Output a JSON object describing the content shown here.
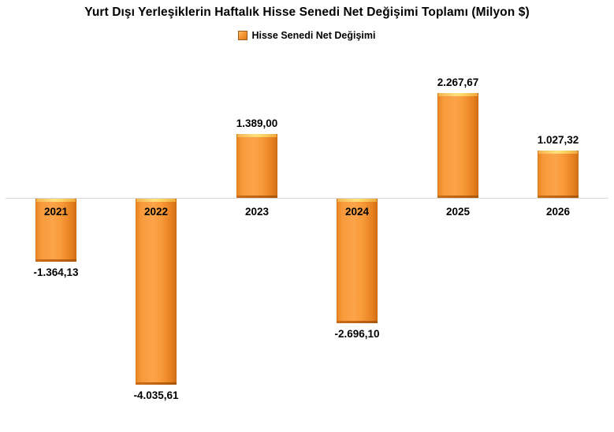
{
  "title": "Yurt Dışı Yerleşiklerin Haftalık Hisse Senedi Net Değişimi Toplamı (Milyon $)",
  "legend": {
    "label": "Hisse Senedi Net Değişimi"
  },
  "chart_data": {
    "type": "bar",
    "title": "Yurt Dışı Yerleşiklerin Haftalık Hisse Senedi Net Değişimi Toplamı (Milyon $)",
    "categories": [
      "2021",
      "2022",
      "2023",
      "2024",
      "2025",
      "2026"
    ],
    "series": [
      {
        "name": "Hisse Senedi Net Değişimi",
        "values": [
          -1364.13,
          -4035.61,
          1389.0,
          -2696.1,
          2267.67,
          1027.32
        ],
        "value_labels": [
          "-1.364,13",
          "-4.035,61",
          "1.389,00",
          "-2.696,10",
          "2.267,67",
          "1.027,32"
        ]
      }
    ],
    "xlabel": "",
    "ylabel": "",
    "ylim": [
      -4600,
      2700
    ],
    "grid": false,
    "legend_position": "top-center",
    "colors": {
      "bar": "#F79646",
      "bar_dark": "#D9731C",
      "bar_highlight": "#FFDC73",
      "axis_line": "#D6D6D6",
      "label": "#000000"
    }
  }
}
